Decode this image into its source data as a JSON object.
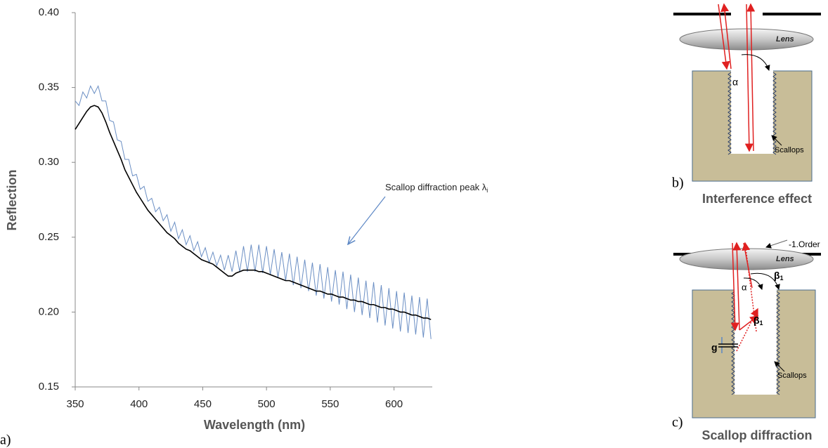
{
  "chart_data": {
    "type": "line",
    "x_label": "Wavelength (nm)",
    "y_label": "Reflection",
    "x": [
      350,
      353,
      356,
      359,
      362,
      365,
      368,
      371,
      374,
      377,
      380,
      383,
      386,
      389,
      392,
      395,
      398,
      401,
      404,
      407,
      410,
      413,
      416,
      419,
      422,
      425,
      428,
      431,
      434,
      437,
      440,
      443,
      446,
      449,
      452,
      455,
      458,
      461,
      464,
      467,
      470,
      473,
      476,
      479,
      482,
      485,
      488,
      491,
      494,
      497,
      500,
      503,
      506,
      509,
      512,
      515,
      518,
      521,
      524,
      527,
      530,
      533,
      536,
      539,
      542,
      545,
      548,
      551,
      554,
      557,
      560,
      563,
      566,
      569,
      572,
      575,
      578,
      581,
      584,
      587,
      590,
      593,
      596,
      599,
      602,
      605,
      608,
      611,
      614,
      617,
      620,
      623,
      626,
      629
    ],
    "series": [
      {
        "color": "#000000",
        "values": [
          0.322,
          0.326,
          0.33,
          0.334,
          0.337,
          0.338,
          0.337,
          0.333,
          0.327,
          0.32,
          0.314,
          0.308,
          0.302,
          0.295,
          0.29,
          0.285,
          0.28,
          0.276,
          0.272,
          0.268,
          0.265,
          0.262,
          0.259,
          0.256,
          0.253,
          0.251,
          0.249,
          0.246,
          0.244,
          0.242,
          0.241,
          0.239,
          0.237,
          0.235,
          0.234,
          0.233,
          0.232,
          0.23,
          0.228,
          0.226,
          0.224,
          0.224,
          0.226,
          0.227,
          0.228,
          0.228,
          0.228,
          0.228,
          0.227,
          0.227,
          0.226,
          0.225,
          0.224,
          0.223,
          0.222,
          0.221,
          0.221,
          0.22,
          0.219,
          0.218,
          0.217,
          0.216,
          0.215,
          0.214,
          0.214,
          0.213,
          0.212,
          0.212,
          0.211,
          0.21,
          0.21,
          0.209,
          0.208,
          0.208,
          0.207,
          0.207,
          0.206,
          0.205,
          0.205,
          0.204,
          0.203,
          0.203,
          0.202,
          0.202,
          0.201,
          0.2,
          0.2,
          0.199,
          0.198,
          0.198,
          0.197,
          0.196,
          0.196,
          0.195
        ]
      },
      {
        "color": "#6b8fc4",
        "values": [
          0.341,
          0.338,
          0.347,
          0.343,
          0.351,
          0.346,
          0.351,
          0.341,
          0.341,
          0.328,
          0.327,
          0.315,
          0.314,
          0.302,
          0.302,
          0.291,
          0.292,
          0.282,
          0.284,
          0.274,
          0.276,
          0.267,
          0.27,
          0.261,
          0.265,
          0.254,
          0.26,
          0.249,
          0.255,
          0.245,
          0.251,
          0.241,
          0.247,
          0.237,
          0.243,
          0.233,
          0.24,
          0.231,
          0.238,
          0.228,
          0.238,
          0.227,
          0.241,
          0.227,
          0.244,
          0.227,
          0.245,
          0.227,
          0.245,
          0.226,
          0.244,
          0.225,
          0.242,
          0.223,
          0.24,
          0.221,
          0.239,
          0.218,
          0.237,
          0.216,
          0.235,
          0.214,
          0.233,
          0.211,
          0.232,
          0.209,
          0.23,
          0.207,
          0.228,
          0.205,
          0.227,
          0.202,
          0.225,
          0.2,
          0.223,
          0.198,
          0.221,
          0.196,
          0.22,
          0.193,
          0.218,
          0.191,
          0.216,
          0.189,
          0.214,
          0.187,
          0.213,
          0.186,
          0.211,
          0.185,
          0.21,
          0.183,
          0.209,
          0.182
        ]
      }
    ],
    "xlim": [
      350,
      630
    ],
    "xticks": [
      350,
      400,
      450,
      500,
      550,
      600
    ],
    "ylim": [
      0.15,
      0.4
    ],
    "yticks": [
      0.15,
      {
        "value": 0.2,
        "label": "0.20"
      },
      0.25,
      {
        "value": 0.3,
        "label": "0.30"
      },
      0.35,
      {
        "value": 0.4,
        "label": "0.40"
      }
    ],
    "annotation": {
      "text": "Scallop diffraction peak λ",
      "sub": "i"
    }
  },
  "panel_labels": [
    "a)",
    "b)",
    "c)"
  ],
  "diagrams": {
    "b": {
      "lens": "Lens",
      "angle": "α",
      "scallops": "Scallops",
      "caption": "Interference effect"
    },
    "c": {
      "order": "-1.Order",
      "lens": "Lens",
      "angle": "α",
      "beta": "β",
      "beta_sub": "1",
      "gap": "g",
      "scallops": "Scallops",
      "caption": "Scallop diffraction"
    }
  }
}
